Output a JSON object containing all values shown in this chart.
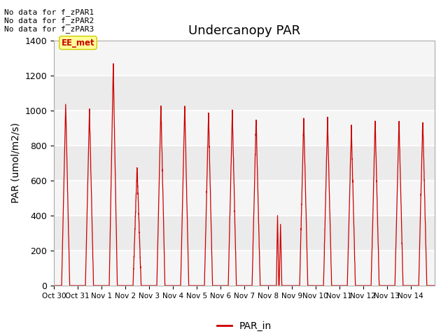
{
  "title": "Undercanopy PAR",
  "ylabel": "PAR (umol/m2/s)",
  "ylim": [
    0,
    1400
  ],
  "yticks": [
    0,
    200,
    400,
    600,
    800,
    1000,
    1200,
    1400
  ],
  "xtick_labels": [
    "Oct 30",
    "Oct 31",
    "Nov 1",
    "Nov 2",
    "Nov 3",
    "Nov 4",
    "Nov 5",
    "Nov 6",
    "Nov 7",
    "Nov 8",
    "Nov 9",
    "Nov 10",
    "Nov 11",
    "Nov 12",
    "Nov 13",
    "Nov 14"
  ],
  "legend_label": "PAR_in",
  "line_color": "#cc0000",
  "bg_color": "#ebebeb",
  "stripe_color": "#e0e0e0",
  "no_data_texts": [
    "No data for f_zPAR1",
    "No data for f_zPAR2",
    "No data for f_zPAR3"
  ],
  "ee_met_label": "EE_met",
  "title_fontsize": 13,
  "axis_fontsize": 10,
  "tick_fontsize": 9,
  "peaks": [
    1040,
    1000,
    1250,
    675,
    1040,
    1040,
    980,
    1000,
    960,
    400,
    960,
    950,
    900,
    940,
    950,
    950
  ],
  "n_days": 16
}
